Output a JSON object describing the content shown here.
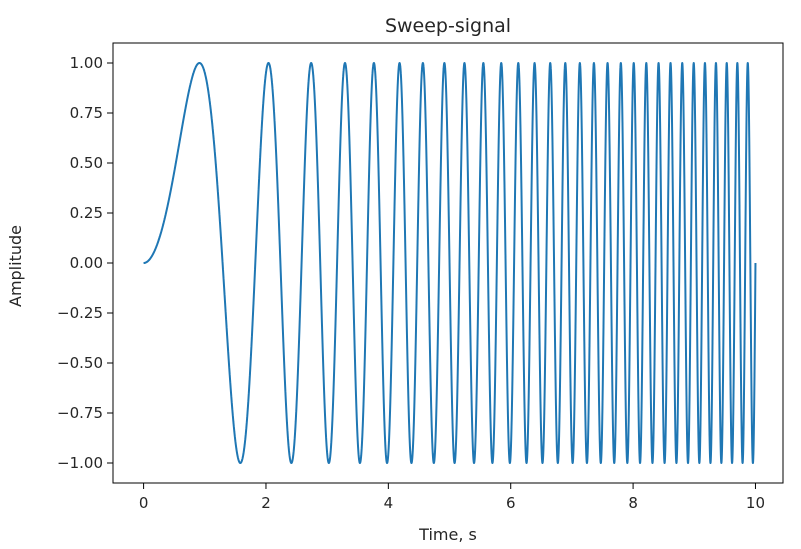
{
  "chart_data": {
    "type": "line",
    "title": "Sweep-signal",
    "xlabel": "Time, s",
    "ylabel": "Amplitude",
    "xlim": [
      -0.5,
      10.45
    ],
    "ylim": [
      -1.1,
      1.1
    ],
    "xticks": [
      0,
      2,
      4,
      6,
      8,
      10
    ],
    "xtick_labels": [
      "0",
      "2",
      "4",
      "6",
      "8",
      "10"
    ],
    "yticks": [
      1.0,
      0.75,
      0.5,
      0.25,
      0.0,
      -0.25,
      -0.5,
      -0.75,
      -1.0
    ],
    "ytick_labels": [
      "1.00",
      "0.75",
      "0.50",
      "0.25",
      "0.00",
      "−0.25",
      "−0.50",
      "−0.75",
      "−1.00"
    ],
    "grid": false,
    "line_color": "#1f77b4",
    "series": [
      {
        "function": "y = sin(pi * 0.6 * t^2)",
        "t_range": [
          0,
          10
        ],
        "y_start": 0.0,
        "y_end": 0.0,
        "peak_times": [
          0.91,
          1.58,
          2.04,
          2.42,
          2.74,
          3.03,
          3.3,
          3.55,
          3.79,
          4.01,
          4.22,
          4.43,
          4.62,
          4.81,
          4.99,
          5.16,
          5.33,
          5.49,
          5.65,
          5.81,
          5.96,
          6.1,
          6.25,
          6.39,
          6.53,
          6.66,
          6.79,
          6.92,
          7.05,
          7.18,
          7.3,
          7.42,
          7.54,
          7.66,
          7.77,
          7.89,
          8.0,
          8.11,
          8.22,
          8.33,
          8.43,
          8.54,
          8.64,
          8.74,
          8.85,
          8.95,
          9.04,
          9.14,
          9.24,
          9.33,
          9.43,
          9.52,
          9.61,
          9.7,
          9.79,
          9.88,
          9.97
        ]
      }
    ]
  }
}
